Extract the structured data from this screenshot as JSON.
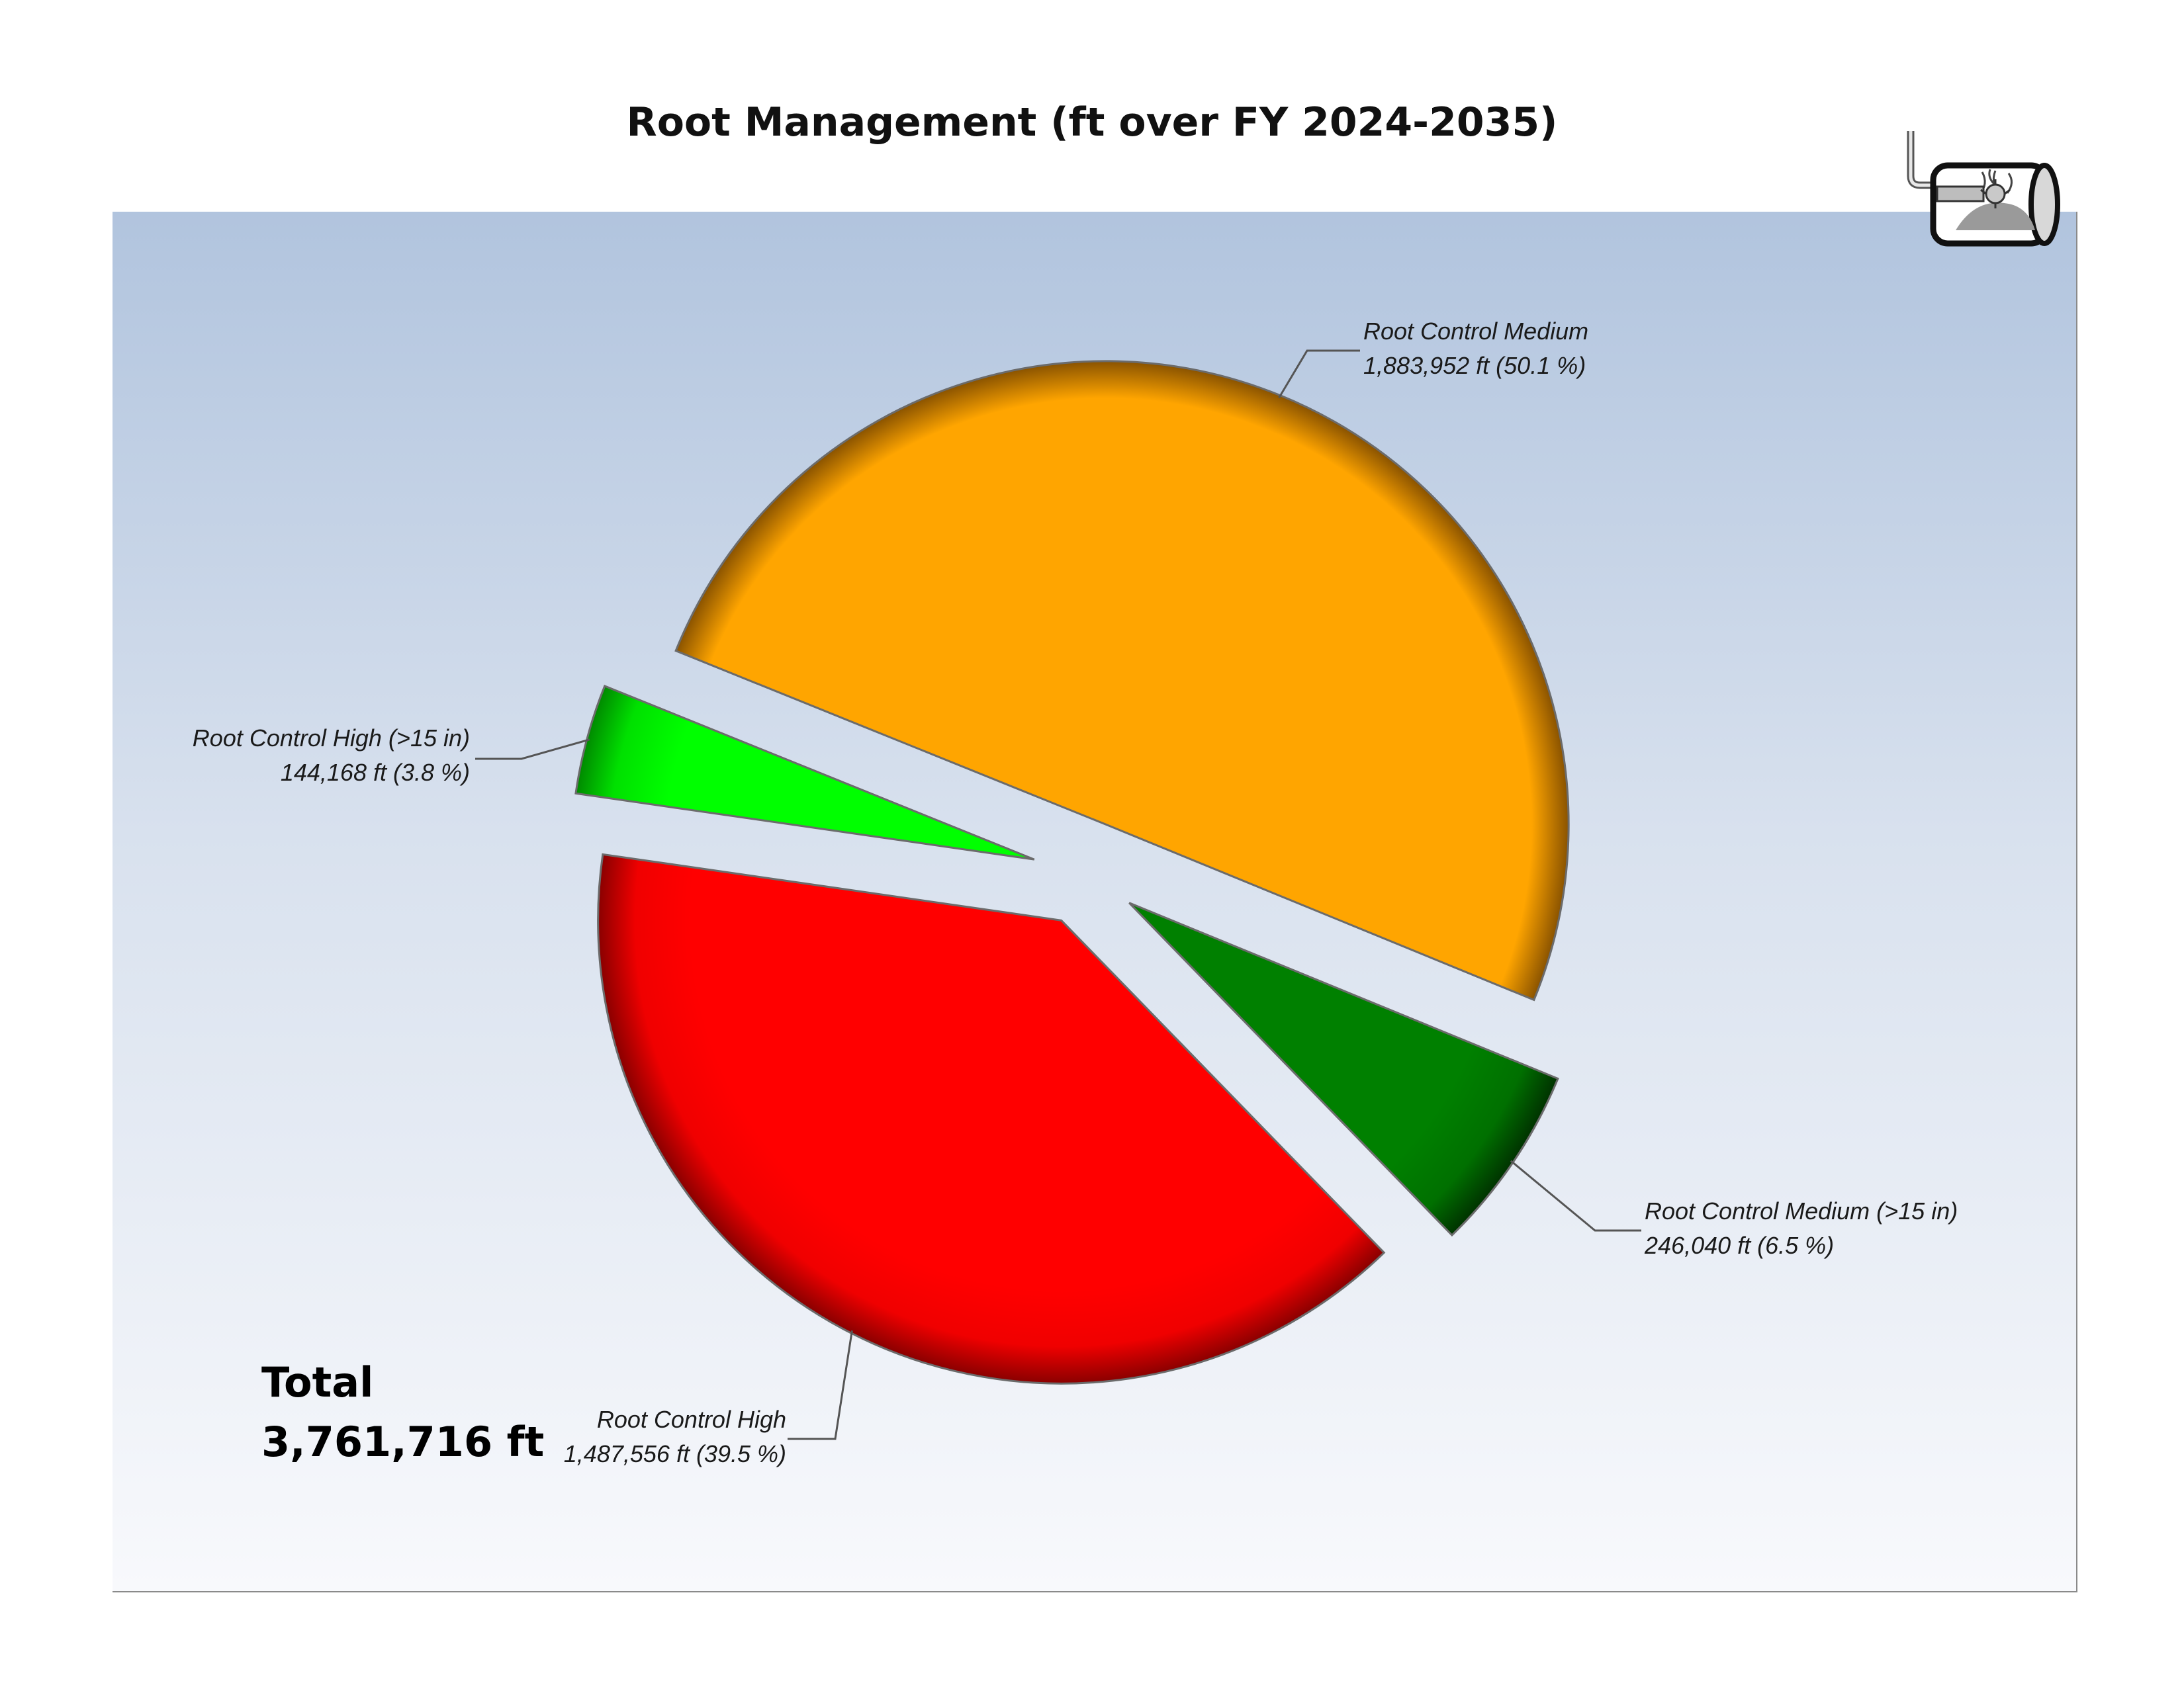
{
  "chart_data": {
    "type": "pie",
    "title": "Root Management (ft over FY 2024-2035)",
    "unit": "ft",
    "exploded": true,
    "slices": [
      {
        "label": "Root Control Medium",
        "value": 1883952,
        "percent": 50.1,
        "value_text": "1,883,952 ft (50.1 %)",
        "color": "#ffa500"
      },
      {
        "label": "Root Control Medium (>15 in)",
        "value": 246040,
        "percent": 6.5,
        "value_text": "246,040 ft (6.5 %)",
        "color": "#008000"
      },
      {
        "label": "Root Control High",
        "value": 1487556,
        "percent": 39.5,
        "value_text": "1,487,556 ft (39.5 %)",
        "color": "#ff0000"
      },
      {
        "label": "Root Control High (>15 in)",
        "value": 144168,
        "percent": 3.8,
        "value_text": "144,168 ft (3.8 %)",
        "color": "#00ff00"
      }
    ],
    "total_label": "Total",
    "total_value": "3,761,716 ft"
  },
  "logo": {
    "icon": "sewer-pipe-root-cutter-icon"
  }
}
